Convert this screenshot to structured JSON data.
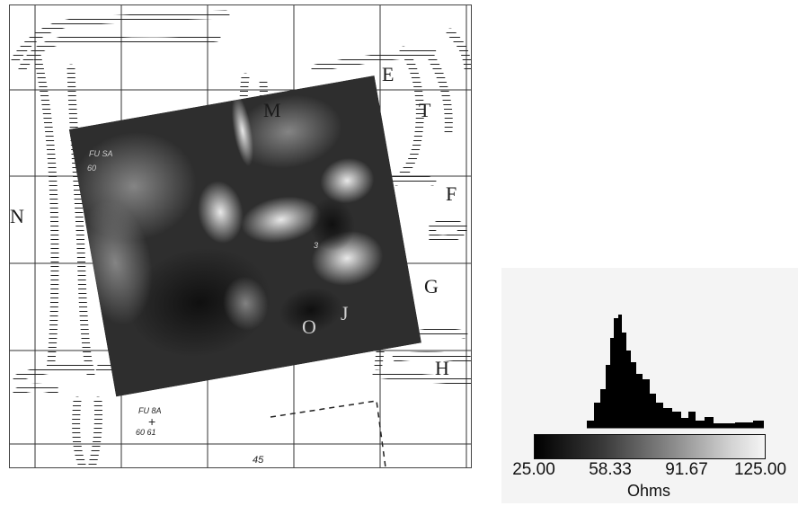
{
  "map": {
    "letters": {
      "n": "N",
      "e": "E",
      "t": "T",
      "f": "F",
      "g": "G",
      "h": "H",
      "m": "M",
      "o": "O",
      "j": "J"
    },
    "small_labels": {
      "fu_top": "FU SA",
      "fu_top_sub": "60",
      "fu_bottom": "FU 8A",
      "fu_bottom_coords": "60 61",
      "grid_number": "45",
      "mid_number": "3"
    }
  },
  "legend": {
    "tick_labels": [
      "25.00",
      "58.33",
      "91.67",
      "125.00"
    ],
    "unit": "Ohms",
    "range": [
      25.0,
      125.0
    ],
    "colormap": "grayscale (black to white)"
  }
}
